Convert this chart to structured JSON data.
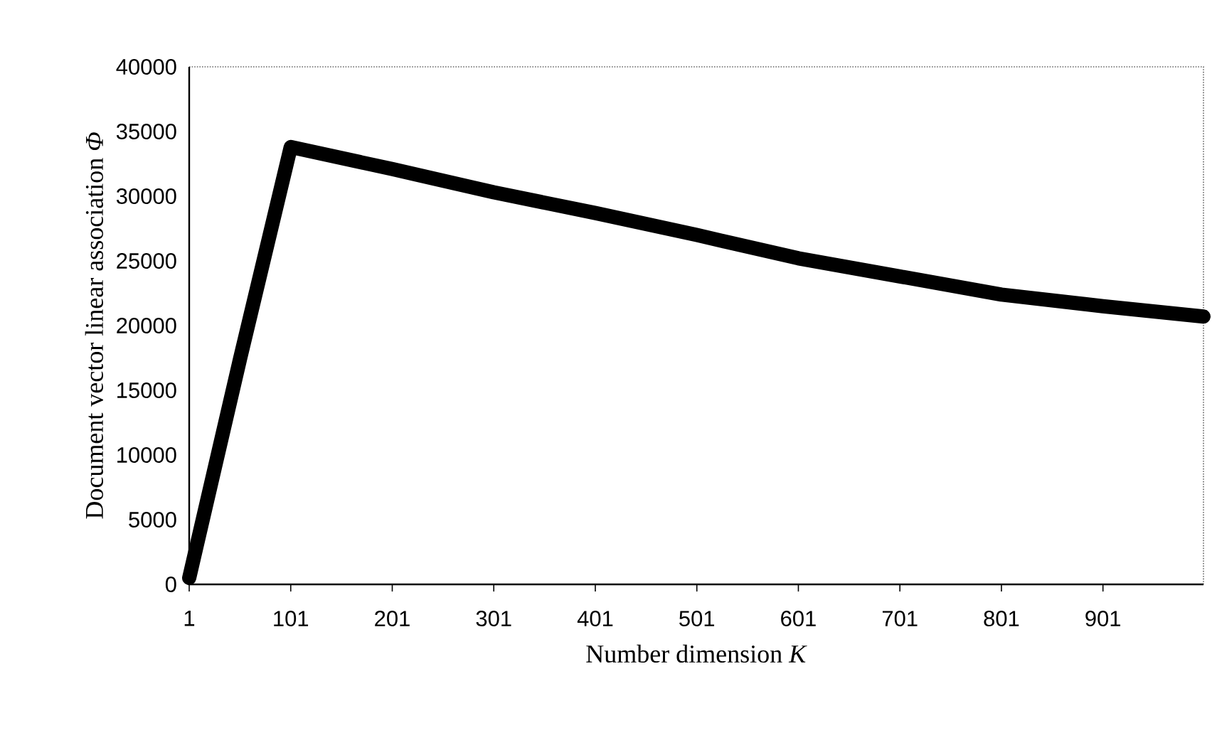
{
  "chart_data": {
    "type": "line",
    "xlabel": "Number dimension *K*",
    "ylabel": "Document vector linear association *Φ*",
    "x": [
      1,
      51,
      101,
      201,
      301,
      401,
      501,
      601,
      701,
      801,
      901,
      1000
    ],
    "series": [
      {
        "color": "#000000",
        "values": [
          500,
          17400,
          33800,
          32100,
          30300,
          28700,
          27000,
          25200,
          23800,
          22400,
          21500,
          20700
        ]
      }
    ],
    "xlim": [
      1,
      1000
    ],
    "xticks": [
      1,
      101,
      201,
      301,
      401,
      501,
      601,
      701,
      801,
      901
    ],
    "ylim": [
      0,
      40000
    ],
    "yticks": [
      0,
      5000,
      10000,
      15000,
      20000,
      25000,
      30000,
      35000,
      40000
    ],
    "grid": false,
    "line_style": "solid"
  }
}
